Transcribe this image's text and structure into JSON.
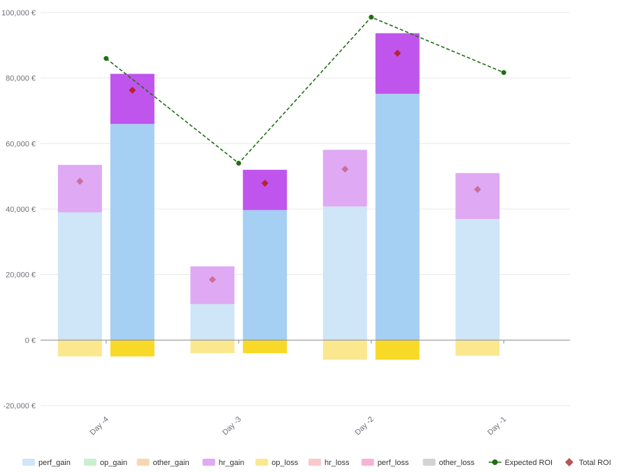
{
  "chart_data": {
    "type": "bar",
    "categories": [
      "Day -4",
      "Day -3",
      "Day -2",
      "Day -1"
    ],
    "ylim": [
      -20000,
      100000
    ],
    "yticks": [
      -20000,
      0,
      20000,
      40000,
      60000,
      80000,
      100000
    ],
    "ytick_labels": [
      "-20,000 €",
      "0 €",
      "20,000 €",
      "40,000 €",
      "60,000 €",
      "80,000 €",
      "100,000 €"
    ],
    "grid": true,
    "legend_position": "bottom",
    "series": [
      {
        "name": "perf_gain",
        "stack": "expected",
        "color": "#cfe5f8",
        "values": [
          39000,
          11000,
          40800,
          37000
        ]
      },
      {
        "name": "hr_gain",
        "stack": "expected",
        "color": "#dfa9f3",
        "values": [
          14500,
          11500,
          17300,
          14000
        ]
      },
      {
        "name": "op_loss",
        "stack": "expected",
        "color": "#fbe88e",
        "values": [
          -5000,
          -4000,
          -6000,
          -4800
        ]
      },
      {
        "name": "perf_gain",
        "stack": "actual",
        "color": "#a5cff3",
        "values": [
          66000,
          39700,
          75200,
          null
        ]
      },
      {
        "name": "hr_gain",
        "stack": "actual",
        "color": "#bf55ec",
        "values": [
          15300,
          12300,
          18500,
          null
        ]
      },
      {
        "name": "op_loss",
        "stack": "actual",
        "color": "#f9d927",
        "values": [
          -5000,
          -4000,
          -6000,
          null
        ]
      }
    ],
    "expected_roi": {
      "name": "Expected ROI",
      "color": "#1f6f12",
      "values": [
        86000,
        54000,
        98600,
        81700
      ]
    },
    "total_roi": {
      "name": "Total ROI",
      "color": "#b52430",
      "expected_values": [
        48500,
        18500,
        52200,
        46000
      ],
      "actual_values": [
        76300,
        47900,
        87600,
        null
      ]
    },
    "legend": [
      {
        "name": "perf_gain",
        "color": "#cfe5f8",
        "kind": "rect"
      },
      {
        "name": "op_gain",
        "color": "#c8f0cf",
        "kind": "rect"
      },
      {
        "name": "other_gain",
        "color": "#f8d6b2",
        "kind": "rect"
      },
      {
        "name": "hr_gain",
        "color": "#dfa9f3",
        "kind": "rect"
      },
      {
        "name": "op_loss",
        "color": "#fbe88e",
        "kind": "rect"
      },
      {
        "name": "hr_loss",
        "color": "#f9c9c9",
        "kind": "rect"
      },
      {
        "name": "perf_loss",
        "color": "#f6b3d5",
        "kind": "rect"
      },
      {
        "name": "other_loss",
        "color": "#d3d3d3",
        "kind": "rect"
      },
      {
        "name": "Expected ROI",
        "color": "#1f6f12",
        "kind": "line"
      },
      {
        "name": "Total ROI",
        "color": "#b85558",
        "kind": "diamond"
      }
    ]
  }
}
